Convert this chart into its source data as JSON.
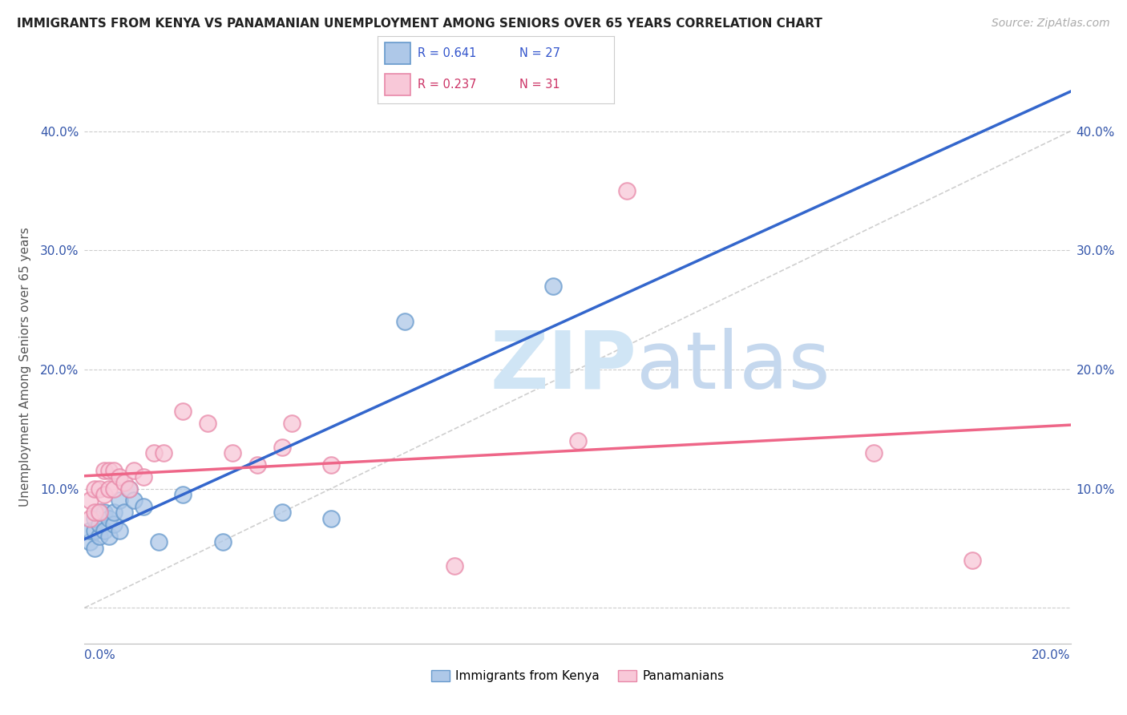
{
  "title": "IMMIGRANTS FROM KENYA VS PANAMANIAN UNEMPLOYMENT AMONG SENIORS OVER 65 YEARS CORRELATION CHART",
  "source": "Source: ZipAtlas.com",
  "ylabel": "Unemployment Among Seniors over 65 years",
  "legend_blue_label": "Immigrants from Kenya",
  "legend_pink_label": "Panamanians",
  "xmin": 0.0,
  "xmax": 0.2,
  "ymin": -0.03,
  "ymax": 0.435,
  "yticks": [
    0.0,
    0.1,
    0.2,
    0.3,
    0.4
  ],
  "ytick_labels": [
    "",
    "10.0%",
    "20.0%",
    "30.0%",
    "40.0%"
  ],
  "color_blue_fill": "#aec8e8",
  "color_blue_edge": "#6699cc",
  "color_pink_fill": "#f8c8d8",
  "color_pink_edge": "#e888a8",
  "color_blue_line": "#3366cc",
  "color_pink_line": "#ee6688",
  "color_diag": "#bbbbbb",
  "watermark_color": "#d0e5f5",
  "legend_box_color": "#f0f0f0",
  "blue_x": [
    0.001,
    0.001,
    0.002,
    0.002,
    0.002,
    0.003,
    0.003,
    0.003,
    0.004,
    0.004,
    0.005,
    0.005,
    0.006,
    0.006,
    0.007,
    0.007,
    0.008,
    0.009,
    0.01,
    0.012,
    0.015,
    0.02,
    0.028,
    0.04,
    0.05,
    0.065,
    0.095
  ],
  "blue_y": [
    0.055,
    0.065,
    0.05,
    0.065,
    0.075,
    0.06,
    0.07,
    0.08,
    0.065,
    0.08,
    0.06,
    0.075,
    0.07,
    0.08,
    0.065,
    0.09,
    0.08,
    0.1,
    0.09,
    0.085,
    0.055,
    0.095,
    0.055,
    0.08,
    0.075,
    0.24,
    0.27
  ],
  "pink_x": [
    0.001,
    0.001,
    0.002,
    0.002,
    0.003,
    0.003,
    0.004,
    0.004,
    0.005,
    0.005,
    0.006,
    0.006,
    0.007,
    0.008,
    0.009,
    0.01,
    0.012,
    0.014,
    0.016,
    0.02,
    0.025,
    0.03,
    0.035,
    0.04,
    0.042,
    0.05,
    0.075,
    0.1,
    0.11,
    0.16,
    0.18
  ],
  "pink_y": [
    0.075,
    0.09,
    0.08,
    0.1,
    0.08,
    0.1,
    0.095,
    0.115,
    0.1,
    0.115,
    0.1,
    0.115,
    0.11,
    0.105,
    0.1,
    0.115,
    0.11,
    0.13,
    0.13,
    0.165,
    0.155,
    0.13,
    0.12,
    0.135,
    0.155,
    0.12,
    0.035,
    0.14,
    0.35,
    0.13,
    0.04
  ]
}
